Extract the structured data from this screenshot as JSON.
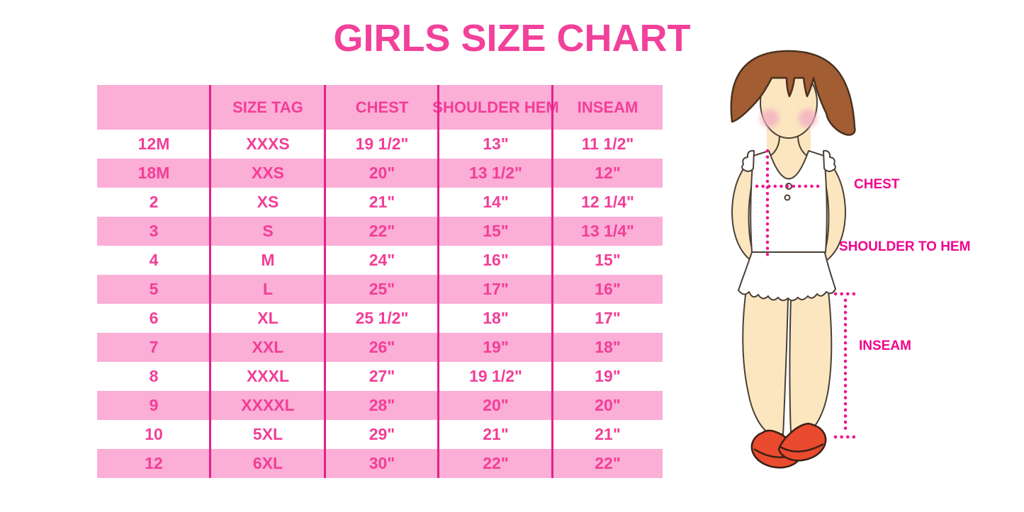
{
  "chart_data": {
    "type": "table",
    "title": "GIRLS SIZE CHART",
    "columns": [
      "",
      "SIZE TAG",
      "CHEST",
      "SHOULDER HEM",
      "INSEAM"
    ],
    "rows": [
      [
        "12M",
        "XXXS",
        "19 1/2\"",
        "13\"",
        "11 1/2\""
      ],
      [
        "18M",
        "XXS",
        "20\"",
        "13 1/2\"",
        "12\""
      ],
      [
        "2",
        "XS",
        "21\"",
        "14\"",
        "12 1/4\""
      ],
      [
        "3",
        "S",
        "22\"",
        "15\"",
        "13 1/4\""
      ],
      [
        "4",
        "M",
        "24\"",
        "16\"",
        "15\""
      ],
      [
        "5",
        "L",
        "25\"",
        "17\"",
        "16\""
      ],
      [
        "6",
        "XL",
        "25 1/2\"",
        "18\"",
        "17\""
      ],
      [
        "7",
        "XXL",
        "26\"",
        "19\"",
        "18\""
      ],
      [
        "8",
        "XXXL",
        "27\"",
        "19 1/2\"",
        "19\""
      ],
      [
        "9",
        "XXXXL",
        "28\"",
        "20\"",
        "20\""
      ],
      [
        "10",
        "5XL",
        "29\"",
        "21\"",
        "21\""
      ],
      [
        "12",
        "6XL",
        "30\"",
        "22\"",
        "22\""
      ]
    ]
  },
  "diagram": {
    "chest_label": "CHEST",
    "shoulder_to_hem_label": "SHOULDER TO HEM",
    "inseam_label": "INSEAM"
  },
  "colors": {
    "title_pink": "#F2419A",
    "table_text_pink": "#F23E97",
    "row_stripe_pink": "#FBAED6",
    "column_separator_pink": "#E52089",
    "measure_label_magenta": "#F1038E",
    "dotted_line_magenta": "#F0148E",
    "hair_brown": "#A25D33",
    "skin_tone": "#FBE6C0",
    "blush_pink": "#F4AEC2",
    "shoe_red": "#EA4A2D"
  }
}
